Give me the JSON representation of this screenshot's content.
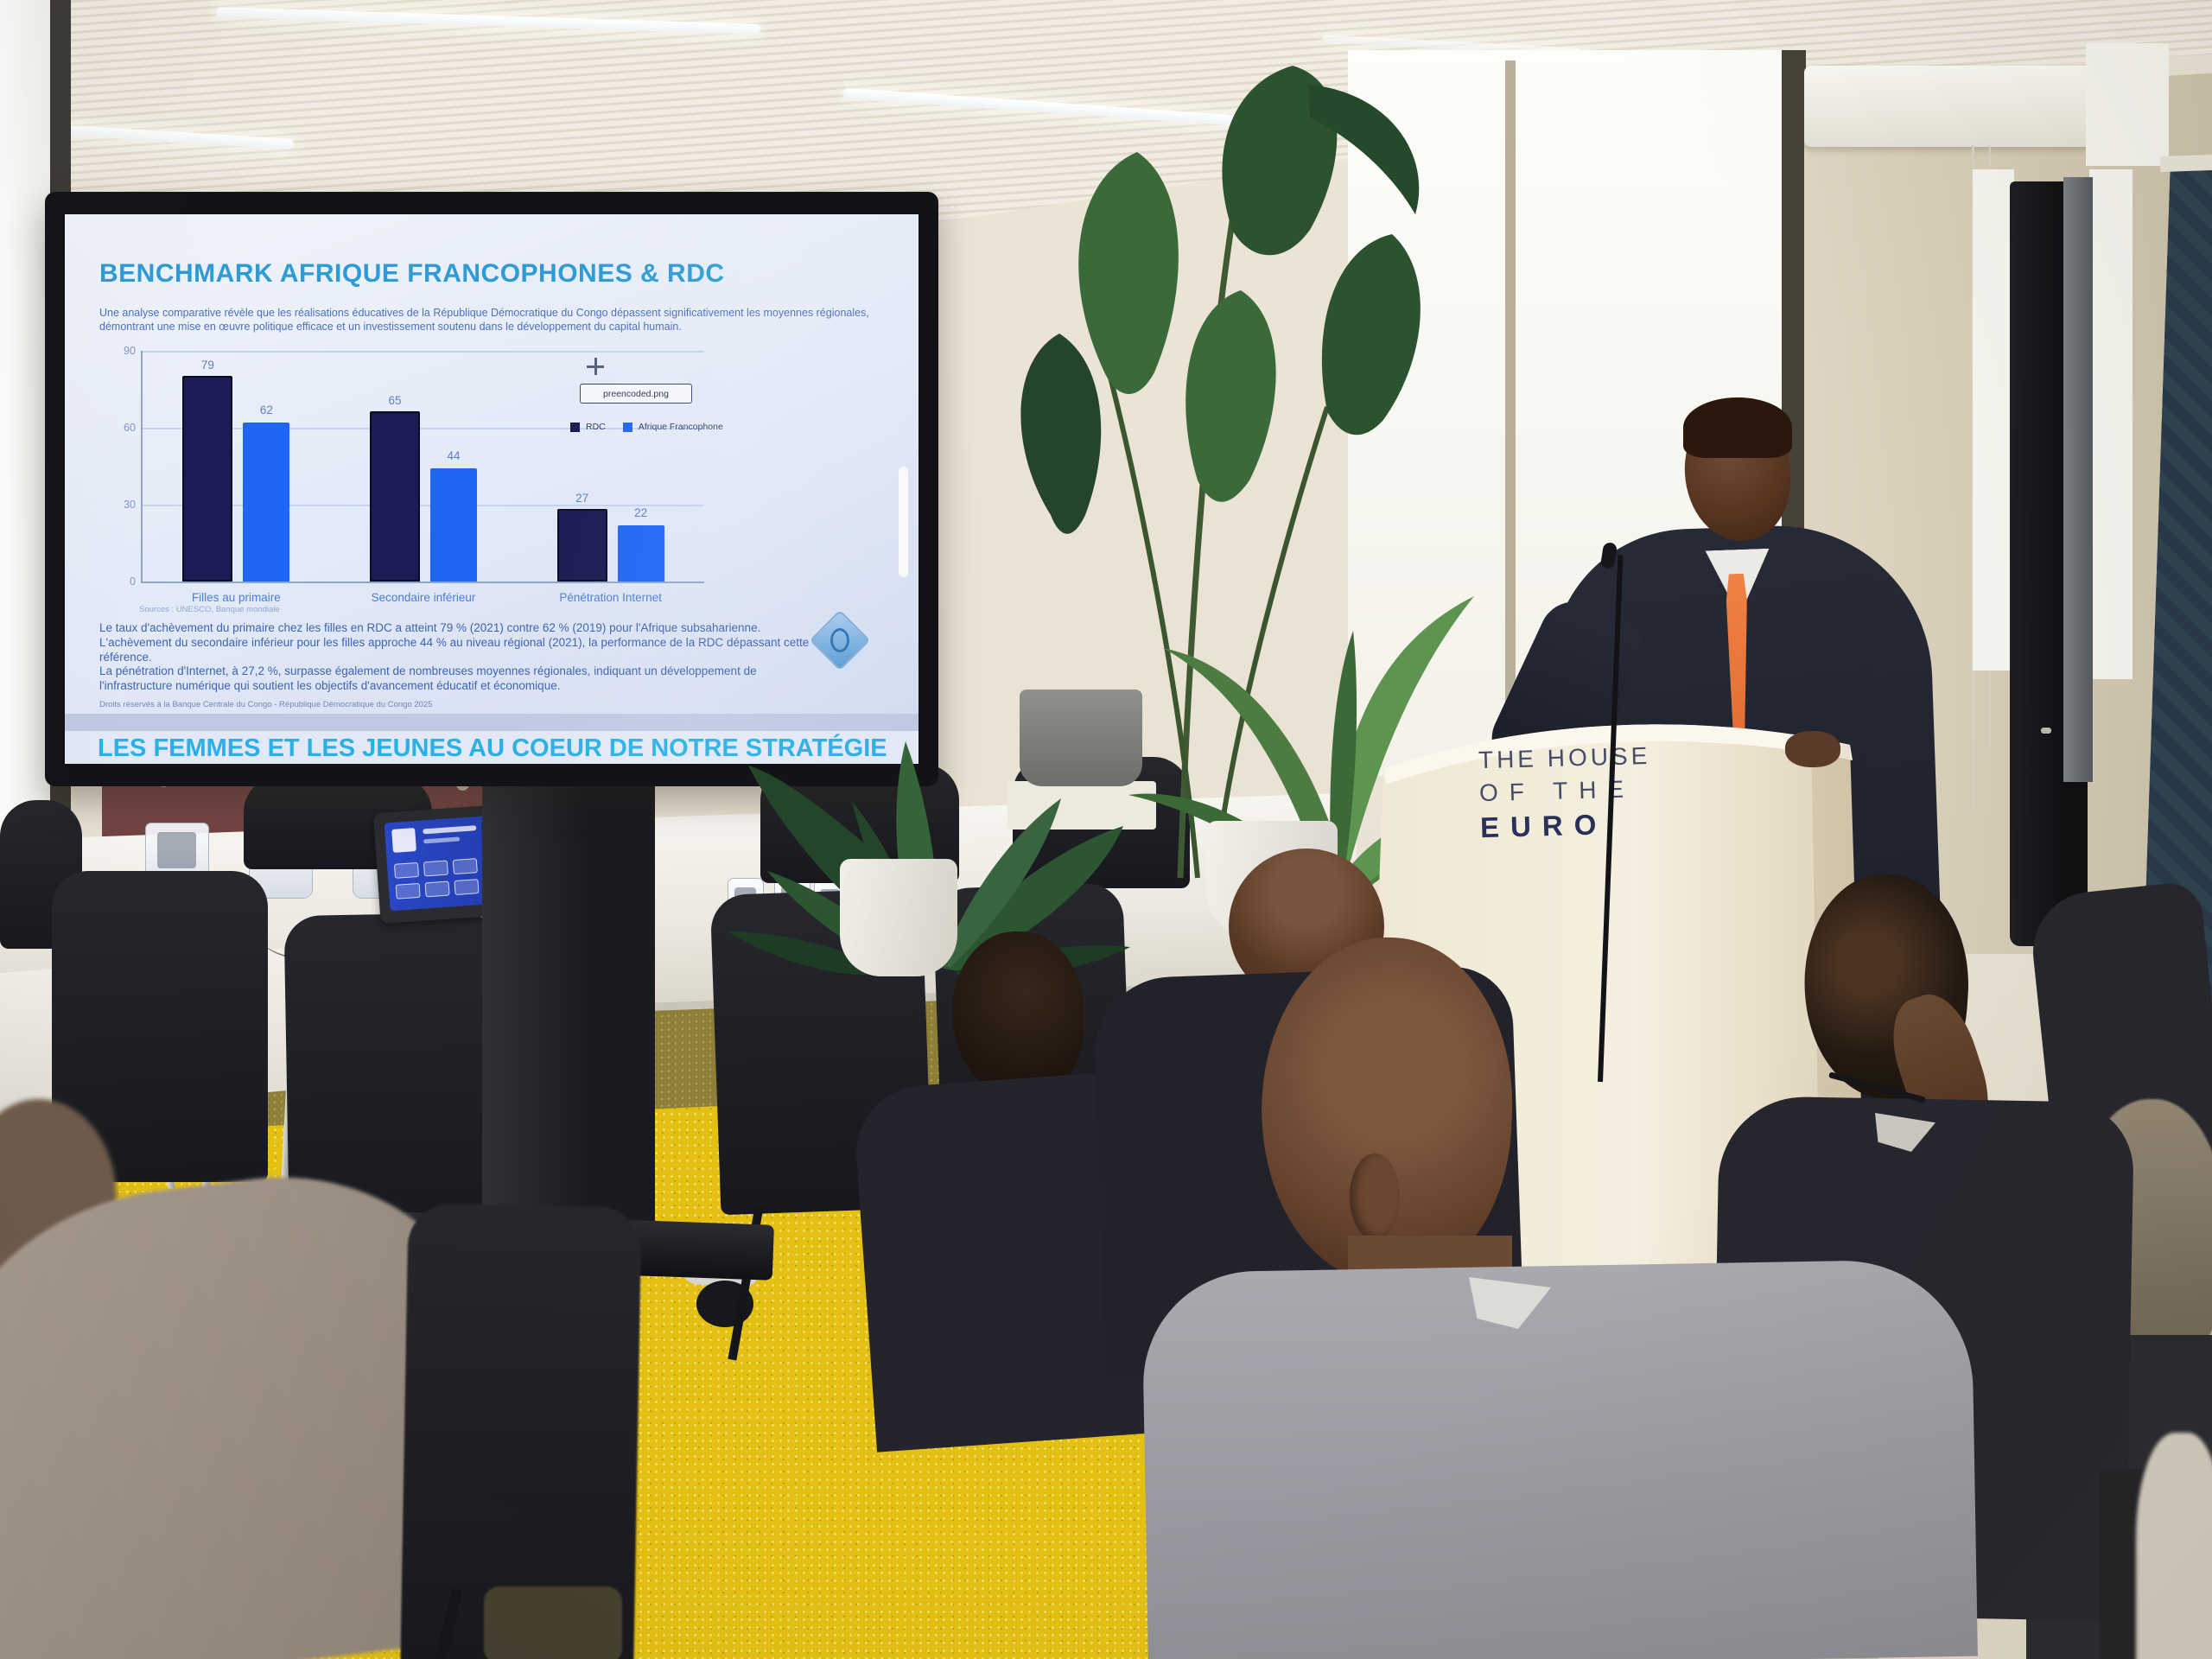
{
  "slide": {
    "title": "BENCHMARK AFRIQUE FRANCOPHONES & RDC",
    "intro": "Une analyse comparative révèle que les réalisations éducatives de la République Démocratique du Congo dépassent significativement les moyennes régionales, démontrant une mise en œuvre politique efficace et un investissement soutenu dans le développement du capital humain.",
    "drag_label": "preencoded.png",
    "sources_line": "Sources : UNESCO, Banque mondiale",
    "paragraph1": "Le taux d'achèvement du primaire chez les filles en RDC a atteint 79 % (2021) contre 62 % (2019) pour l'Afrique subsaharienne. L'achèvement du secondaire inférieur pour les filles approche 44 % au niveau régional (2021), la performance de la RDC dépassant cette référence.",
    "paragraph2": "La pénétration d'Internet, à 27,2 %, surpasse également de nombreuses moyennes régionales, indiquant un développement de l'infrastructure numérique qui soutient les objectifs d'avancement éducatif et économique.",
    "footer": "Droits réservés à la Banque Centrale du Congo - République Démocratique du Congo 2025",
    "next_slide_title": "LES FEMMES ET LES JEUNES AU COEUR DE NOTRE STRATÉGIE"
  },
  "chart_data": {
    "type": "bar",
    "title": "",
    "categories": [
      "Filles au primaire",
      "Secondaire inférieur",
      "Pénétration Internet"
    ],
    "series": [
      {
        "name": "RDC",
        "values": [
          79,
          65,
          27
        ],
        "color": "#1b1b55"
      },
      {
        "name": "Afrique Francophone",
        "values": [
          62,
          44,
          22
        ],
        "color": "#1f66f2"
      }
    ],
    "ylim": [
      0,
      90
    ],
    "yticks": [
      0,
      30,
      60,
      90
    ],
    "grid": true,
    "legend_position": "right"
  },
  "podium": {
    "line1": "THE HOUSE",
    "line2": "OF THE",
    "line3": "EURO"
  },
  "colors": {
    "slide_background": "#e8edf8",
    "slide_title_blue": "#2e9bd6",
    "slide_text_blue": "#4468b8",
    "bar_rdc": "#1b1b55",
    "bar_afrique_francophone": "#1f66f2",
    "next_title_cyan": "#29b0e6",
    "carpet_yellow": "#e4c013",
    "podium_cream": "#f2ebdb",
    "tie_orange": "#e8743c",
    "acoustic_panel_teal": "#2d4351"
  }
}
